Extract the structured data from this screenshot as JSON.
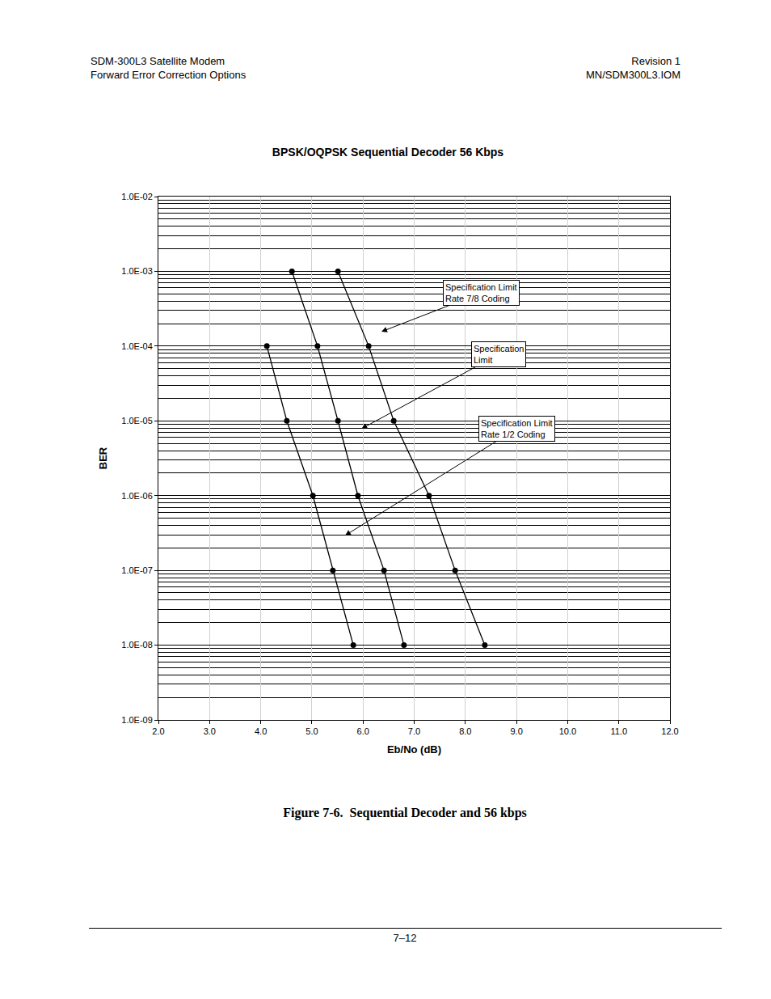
{
  "page": {
    "header_left": [
      "SDM-300L3 Satellite Modem",
      "Forward Error Correction Options"
    ],
    "header_right": [
      "Revision 1",
      "MN/SDM300L3.IOM"
    ],
    "caption": "Figure 7-6.  Sequential Decoder and 56 kbps",
    "page_number": "7–12"
  },
  "chart_data": {
    "type": "line",
    "title": "BPSK/OQPSK Sequential Decoder 56 Kbps",
    "x_label": "Eb/No (dB)",
    "y_label": "BER",
    "log": "y",
    "grid": true,
    "xlim": [
      2,
      12
    ],
    "ylim": [
      1e-09,
      0.01
    ],
    "xticks": [
      {
        "value": 2,
        "label": "2.0"
      },
      {
        "value": 3,
        "label": "3.0"
      },
      {
        "value": 4,
        "label": "4.0"
      },
      {
        "value": 5,
        "label": "5.0"
      },
      {
        "value": 6,
        "label": "6.0"
      },
      {
        "value": 7,
        "label": "7.0"
      },
      {
        "value": 8,
        "label": "8.0"
      },
      {
        "value": 9,
        "label": "9.0"
      },
      {
        "value": 10,
        "label": "10.0"
      },
      {
        "value": 11,
        "label": "11.0"
      },
      {
        "value": 12,
        "label": "12.0"
      }
    ],
    "yticks": [
      {
        "value": 1e-09,
        "label": "1.0E-09"
      },
      {
        "value": 1e-08,
        "label": "1.0E-08"
      },
      {
        "value": 1e-07,
        "label": "1.0E-07"
      },
      {
        "value": 1e-06,
        "label": "1.0E-06"
      },
      {
        "value": 1e-05,
        "label": "1.0E-05"
      },
      {
        "value": 0.0001,
        "label": "1.0E-04"
      },
      {
        "value": 0.001,
        "label": "1.0E-03"
      },
      {
        "value": 0.01,
        "label": "1.0E-02"
      }
    ],
    "series": [
      {
        "color": "#000000",
        "marker": "circle",
        "line_style": "solid",
        "x": [
          4.12,
          4.51,
          5.02,
          5.41,
          5.81
        ],
        "values": [
          0.0001,
          1e-05,
          1e-06,
          1e-07,
          1e-08
        ]
      },
      {
        "color": "#000000",
        "marker": "circle",
        "line_style": "solid",
        "x": [
          4.61,
          5.11,
          5.51,
          5.9,
          6.41,
          6.8
        ],
        "values": [
          0.001,
          0.0001,
          1e-05,
          1e-06,
          1e-07,
          1e-08
        ]
      },
      {
        "color": "#000000",
        "marker": "circle",
        "line_style": "solid",
        "x": [
          5.51,
          6.11,
          6.6,
          7.29,
          7.8,
          8.38
        ],
        "values": [
          0.001,
          0.0001,
          1e-05,
          1e-06,
          1e-07,
          1e-08
        ]
      }
    ],
    "annotations": [
      {
        "lines": [
          "Specification Limit",
          "Rate 7/8 Coding"
        ],
        "x": 6.36,
        "y": 0.000156
      },
      {
        "lines": [
          "Specification",
          "Limit"
        ],
        "x": 5.97,
        "y": 7.85e-06
      },
      {
        "lines": [
          "Specification Limit",
          "Rate 1/2 Coding"
        ],
        "x": 5.65,
        "y": 2.93e-07
      }
    ]
  }
}
